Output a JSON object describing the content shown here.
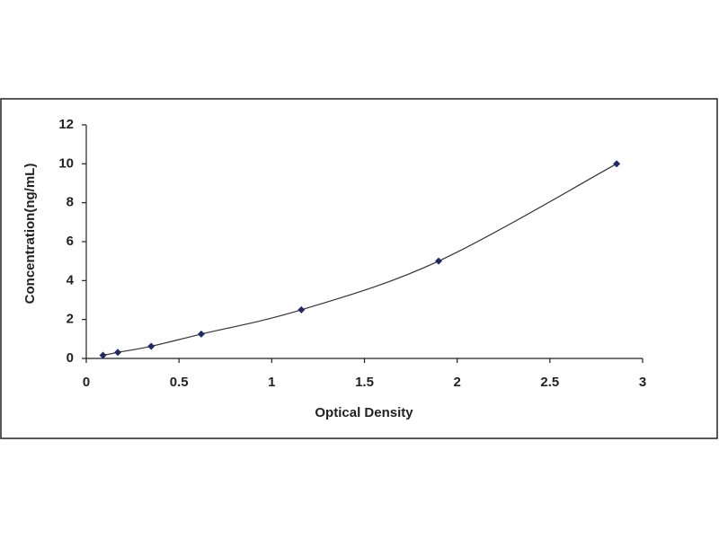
{
  "chart_data": {
    "type": "scatter",
    "x_label": "Optical Density",
    "y_label": "Concentration(ng/mL)",
    "series": [
      {
        "color": "#1f2a6b",
        "line_color": "#333333",
        "x": [
          0.09,
          0.17,
          0.35,
          0.62,
          1.16,
          1.9,
          2.86
        ],
        "values": [
          0.16,
          0.31,
          0.625,
          1.25,
          2.5,
          5,
          10
        ]
      }
    ],
    "xlim": [
      0,
      3
    ],
    "xticks": [
      0,
      0.5,
      1,
      1.5,
      2,
      2.5,
      3
    ],
    "ylim": [
      0,
      12
    ],
    "yticks": [
      0,
      2,
      4,
      6,
      8,
      10,
      12
    ],
    "grid": false,
    "smooth_line": true
  }
}
